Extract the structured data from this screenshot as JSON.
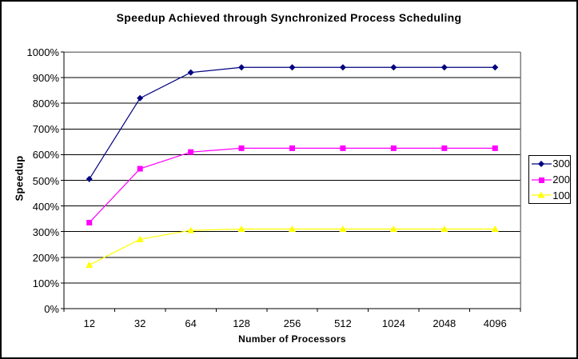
{
  "chart_data": {
    "type": "line",
    "title": "Speedup Achieved through Synchronized Process Scheduling",
    "xlabel": "Number of Processors",
    "ylabel": "Speedup",
    "categories": [
      "12",
      "32",
      "64",
      "128",
      "256",
      "512",
      "1024",
      "2048",
      "4096"
    ],
    "y_ticks": [
      "0%",
      "100%",
      "200%",
      "300%",
      "400%",
      "500%",
      "600%",
      "700%",
      "800%",
      "900%",
      "1000%"
    ],
    "ylim": [
      0,
      1000
    ],
    "y_step": 100,
    "grid": true,
    "legend_position": "right",
    "series": [
      {
        "name": "300",
        "color": "#000080",
        "marker": "diamond",
        "values": [
          505,
          820,
          920,
          940,
          940,
          940,
          940,
          940,
          940
        ]
      },
      {
        "name": "200",
        "color": "#FF00FF",
        "marker": "square",
        "values": [
          335,
          545,
          610,
          625,
          625,
          625,
          625,
          625,
          625
        ]
      },
      {
        "name": "100",
        "color": "#FFFF00",
        "marker": "triangle",
        "values": [
          170,
          270,
          305,
          310,
          310,
          310,
          310,
          310,
          310
        ]
      }
    ],
    "colors": {
      "background": "#FFFFFF",
      "plot_border": "#808080",
      "gridline": "#000000",
      "axis": "#000000",
      "text": "#000000"
    }
  }
}
